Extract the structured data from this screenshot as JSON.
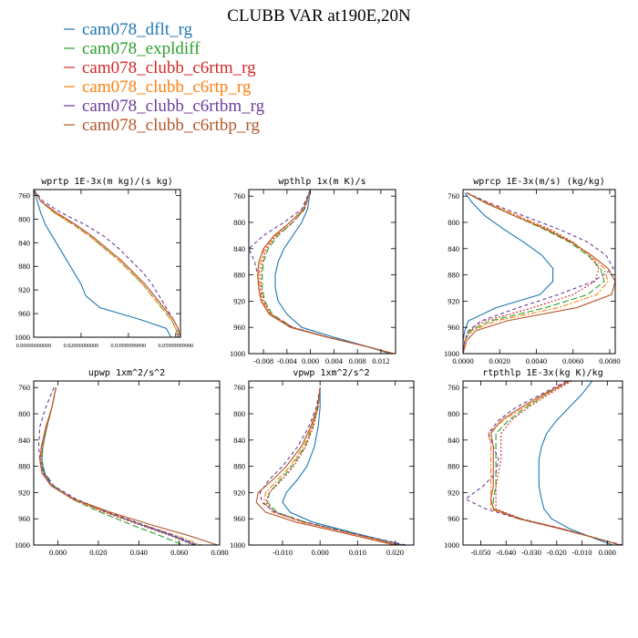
{
  "figure_title": "CLUBB VAR at190E,20N",
  "legend": [
    {
      "label": "cam078_dflt_rg",
      "color": "#1f77b4",
      "dash": "solid"
    },
    {
      "label": "cam078_expldiff",
      "color": "#2ca02c",
      "dash": "longdash"
    },
    {
      "label": "cam078_clubb_c6rtm_rg",
      "color": "#d62728",
      "dash": "dot"
    },
    {
      "label": "cam078_clubb_c6rtp_rg",
      "color": "#ff7f0e",
      "dash": "dashdot"
    },
    {
      "label": "cam078_clubb_c6rtbm_rg",
      "color": "#6a3d9a",
      "dash": "dash"
    },
    {
      "label": "cam078_clubb_c6rtbp_rg",
      "color": "#b5562a",
      "dash": "solid"
    }
  ],
  "chart_data": [
    {
      "type": "line",
      "title": "wprtp  1E-3x(m kg)/(s kg)",
      "xlim": [
        0.0,
        0.062
      ],
      "ylim": [
        1000,
        750
      ],
      "xticks": [
        0.0,
        0.02,
        0.04,
        0.06
      ],
      "xtick_labels": [
        "0.00000000000",
        "0.02000000000",
        "0.03999999990",
        "0.05999999990"
      ],
      "yticks": [
        760,
        800,
        840,
        880,
        920,
        960,
        1000
      ],
      "y": [
        750,
        770,
        790,
        810,
        830,
        850,
        870,
        890,
        910,
        930,
        950,
        970,
        985,
        1000
      ],
      "series": [
        {
          "name": "cam078_dflt_rg",
          "x": [
            0.0,
            0.0015,
            0.003,
            0.005,
            0.008,
            0.011,
            0.014,
            0.017,
            0.02,
            0.022,
            0.028,
            0.045,
            0.056,
            0.058
          ]
        },
        {
          "name": "cam078_expldiff",
          "x": [
            0.0,
            0.003,
            0.009,
            0.017,
            0.024,
            0.03,
            0.036,
            0.041,
            0.046,
            0.05,
            0.054,
            0.058,
            0.06,
            0.061
          ]
        },
        {
          "name": "cam078_clubb_c6rtm_rg",
          "x": [
            0.0,
            0.003,
            0.009,
            0.018,
            0.025,
            0.031,
            0.037,
            0.042,
            0.047,
            0.051,
            0.055,
            0.059,
            0.061,
            0.061
          ]
        },
        {
          "name": "cam078_clubb_c6rtp_rg",
          "x": [
            0.0,
            0.003,
            0.009,
            0.017,
            0.024,
            0.03,
            0.036,
            0.041,
            0.046,
            0.05,
            0.054,
            0.058,
            0.06,
            0.061
          ]
        },
        {
          "name": "cam078_clubb_c6rtbm_rg",
          "x": [
            0.0,
            0.004,
            0.012,
            0.022,
            0.03,
            0.036,
            0.041,
            0.046,
            0.05,
            0.053,
            0.056,
            0.059,
            0.061,
            0.061
          ]
        },
        {
          "name": "cam078_clubb_c6rtbp_rg",
          "x": [
            0.0,
            0.003,
            0.01,
            0.018,
            0.025,
            0.031,
            0.037,
            0.042,
            0.047,
            0.051,
            0.055,
            0.059,
            0.061,
            0.062
          ]
        }
      ]
    },
    {
      "type": "line",
      "title": "wpthlp  1x(m K)/s",
      "xlim": [
        -0.0105,
        0.0145
      ],
      "ylim": [
        1000,
        750
      ],
      "xticks": [
        -0.008,
        -0.004,
        0.0,
        0.004,
        0.008,
        0.012
      ],
      "xtick_labels": [
        "-0.008",
        "-0.004",
        "0.000",
        "0.004",
        "0.008",
        "0.012"
      ],
      "yticks": [
        760,
        800,
        840,
        880,
        920,
        960,
        1000
      ],
      "y": [
        750,
        780,
        800,
        820,
        840,
        860,
        880,
        900,
        920,
        940,
        960,
        975,
        990,
        1000
      ],
      "series": [
        {
          "name": "cam078_dflt_rg",
          "x": [
            0.0,
            -0.0005,
            -0.0015,
            -0.003,
            -0.0045,
            -0.0055,
            -0.006,
            -0.006,
            -0.0055,
            -0.004,
            -0.0015,
            0.004,
            0.01,
            0.0135
          ]
        },
        {
          "name": "cam078_expldiff",
          "x": [
            0.0,
            -0.001,
            -0.003,
            -0.0055,
            -0.0072,
            -0.008,
            -0.0082,
            -0.0082,
            -0.0078,
            -0.0065,
            -0.003,
            0.003,
            0.01,
            0.014
          ]
        },
        {
          "name": "cam078_clubb_c6rtm_rg",
          "x": [
            0.0,
            -0.001,
            -0.003,
            -0.0058,
            -0.0075,
            -0.0082,
            -0.0085,
            -0.0084,
            -0.008,
            -0.0067,
            -0.003,
            0.003,
            0.01,
            0.014
          ]
        },
        {
          "name": "cam078_clubb_c6rtp_rg",
          "x": [
            0.0,
            -0.0012,
            -0.0035,
            -0.006,
            -0.0078,
            -0.0085,
            -0.0088,
            -0.0086,
            -0.0082,
            -0.0068,
            -0.0032,
            0.003,
            0.01,
            0.014
          ]
        },
        {
          "name": "cam078_clubb_c6rtbm_rg",
          "x": [
            0.0,
            -0.0015,
            -0.0045,
            -0.008,
            -0.0105,
            -0.0095,
            -0.009,
            -0.0088,
            -0.0084,
            -0.007,
            -0.0032,
            0.003,
            0.01,
            0.0142
          ]
        },
        {
          "name": "cam078_clubb_c6rtbp_rg",
          "x": [
            0.0,
            -0.0012,
            -0.0035,
            -0.0062,
            -0.008,
            -0.0088,
            -0.009,
            -0.0088,
            -0.0084,
            -0.007,
            -0.0034,
            0.0028,
            0.01,
            0.0142
          ]
        }
      ]
    },
    {
      "type": "line",
      "title": "wprcp  1E-3x(m/s) (kg/kg)",
      "xlim": [
        0.0,
        0.0083
      ],
      "ylim": [
        1000,
        750
      ],
      "xticks": [
        0.0,
        0.002,
        0.004,
        0.006,
        0.008
      ],
      "xtick_labels": [
        "0.0000",
        "0.0020",
        "0.0040",
        "0.0060",
        "0.0080"
      ],
      "yticks": [
        760,
        800,
        840,
        880,
        920,
        960,
        1000
      ],
      "y": [
        755,
        770,
        790,
        810,
        830,
        850,
        870,
        890,
        910,
        930,
        950,
        965,
        980,
        1000
      ],
      "series": [
        {
          "name": "cam078_dflt_rg",
          "x": [
            0.0001,
            0.0005,
            0.0012,
            0.0022,
            0.0033,
            0.0043,
            0.0049,
            0.0049,
            0.0042,
            0.0018,
            0.0003,
            0.0001,
            0.0,
            0.0
          ]
        },
        {
          "name": "cam078_expldiff",
          "x": [
            0.0002,
            0.0012,
            0.0028,
            0.0044,
            0.0058,
            0.0068,
            0.0075,
            0.0077,
            0.0068,
            0.0045,
            0.0015,
            0.0004,
            0.0001,
            0.0
          ]
        },
        {
          "name": "cam078_clubb_c6rtm_rg",
          "x": [
            0.0002,
            0.0013,
            0.003,
            0.0047,
            0.006,
            0.0069,
            0.0074,
            0.0072,
            0.006,
            0.0038,
            0.0012,
            0.0003,
            0.0001,
            0.0
          ]
        },
        {
          "name": "cam078_clubb_c6rtp_rg",
          "x": [
            0.0002,
            0.0013,
            0.003,
            0.0046,
            0.0059,
            0.0069,
            0.0077,
            0.0079,
            0.0073,
            0.0052,
            0.0018,
            0.0005,
            0.0001,
            0.0
          ]
        },
        {
          "name": "cam078_clubb_c6rtbm_rg",
          "x": [
            0.0002,
            0.0014,
            0.0033,
            0.0052,
            0.0068,
            0.0078,
            0.0082,
            0.0071,
            0.0052,
            0.003,
            0.001,
            0.0003,
            0.0001,
            0.0
          ]
        },
        {
          "name": "cam078_clubb_c6rtbp_rg",
          "x": [
            0.0002,
            0.0012,
            0.0028,
            0.0045,
            0.0059,
            0.007,
            0.0079,
            0.0083,
            0.0081,
            0.0062,
            0.0024,
            0.0007,
            0.0002,
            0.0
          ]
        }
      ]
    },
    {
      "type": "line",
      "title": "upwp  1xm^2/s^2",
      "xlim": [
        -0.012,
        0.08
      ],
      "ylim": [
        1000,
        750
      ],
      "xticks": [
        0.0,
        0.02,
        0.04,
        0.06,
        0.08
      ],
      "xtick_labels": [
        "0.000",
        "0.020",
        "0.040",
        "0.060",
        "0.080"
      ],
      "yticks": [
        760,
        800,
        840,
        880,
        920,
        960,
        1000
      ],
      "y": [
        760,
        790,
        820,
        850,
        870,
        890,
        910,
        930,
        950,
        970,
        985,
        1000
      ],
      "series": [
        {
          "name": "cam078_dflt_rg",
          "x": [
            -0.001,
            -0.003,
            -0.0055,
            -0.0075,
            -0.008,
            -0.007,
            -0.003,
            0.008,
            0.024,
            0.042,
            0.056,
            0.068
          ]
        },
        {
          "name": "cam078_expldiff",
          "x": [
            -0.001,
            -0.003,
            -0.0055,
            -0.0075,
            -0.008,
            -0.0065,
            -0.002,
            0.007,
            0.021,
            0.037,
            0.05,
            0.062
          ]
        },
        {
          "name": "cam078_clubb_c6rtm_rg",
          "x": [
            -0.001,
            -0.003,
            -0.0055,
            -0.0078,
            -0.0085,
            -0.0075,
            -0.003,
            0.007,
            0.023,
            0.041,
            0.055,
            0.067
          ]
        },
        {
          "name": "cam078_clubb_c6rtp_rg",
          "x": [
            -0.001,
            -0.003,
            -0.0058,
            -0.008,
            -0.0088,
            -0.0078,
            -0.0032,
            0.0075,
            0.024,
            0.043,
            0.058,
            0.071
          ]
        },
        {
          "name": "cam078_clubb_c6rtbm_rg",
          "x": [
            -0.002,
            -0.006,
            -0.009,
            -0.0095,
            -0.009,
            -0.007,
            -0.002,
            0.009,
            0.025,
            0.043,
            0.057,
            0.069
          ]
        },
        {
          "name": "cam078_clubb_c6rtbp_rg",
          "x": [
            -0.001,
            -0.003,
            -0.006,
            -0.0082,
            -0.009,
            -0.008,
            -0.0034,
            0.008,
            0.026,
            0.047,
            0.064,
            0.079
          ]
        }
      ]
    },
    {
      "type": "line",
      "title": "vpwp  1xm^2/s^2",
      "xlim": [
        -0.019,
        0.025
      ],
      "ylim": [
        1000,
        750
      ],
      "xticks": [
        -0.01,
        0.0,
        0.01,
        0.02
      ],
      "xtick_labels": [
        "-0.010",
        "0.000",
        "0.010",
        "0.020"
      ],
      "yticks": [
        760,
        800,
        840,
        880,
        920,
        960,
        1000
      ],
      "y": [
        760,
        790,
        820,
        850,
        880,
        900,
        920,
        935,
        950,
        965,
        980,
        1000
      ],
      "series": [
        {
          "name": "cam078_dflt_rg",
          "x": [
            0.0,
            0.0,
            -0.0005,
            -0.0015,
            -0.0035,
            -0.006,
            -0.009,
            -0.01,
            -0.008,
            -0.002,
            0.008,
            0.022
          ]
        },
        {
          "name": "cam078_expldiff",
          "x": [
            0.0,
            -0.0005,
            -0.002,
            -0.004,
            -0.0075,
            -0.0105,
            -0.0135,
            -0.014,
            -0.0115,
            -0.004,
            0.007,
            0.021
          ]
        },
        {
          "name": "cam078_clubb_c6rtm_rg",
          "x": [
            0.0,
            -0.0005,
            -0.0018,
            -0.0038,
            -0.007,
            -0.01,
            -0.0135,
            -0.0145,
            -0.012,
            -0.0045,
            0.0065,
            0.021
          ]
        },
        {
          "name": "cam078_clubb_c6rtp_rg",
          "x": [
            0.0,
            -0.0006,
            -0.0022,
            -0.0045,
            -0.008,
            -0.0112,
            -0.0145,
            -0.015,
            -0.0125,
            -0.0048,
            0.0065,
            0.021
          ]
        },
        {
          "name": "cam078_clubb_c6rtbm_rg",
          "x": [
            0.0,
            -0.001,
            -0.003,
            -0.006,
            -0.01,
            -0.0135,
            -0.016,
            -0.0155,
            -0.012,
            -0.004,
            0.007,
            0.023
          ]
        },
        {
          "name": "cam078_clubb_c6rtbp_rg",
          "x": [
            0.0,
            -0.0007,
            -0.0025,
            -0.005,
            -0.009,
            -0.0125,
            -0.0165,
            -0.017,
            -0.0145,
            -0.0065,
            0.005,
            0.02
          ]
        }
      ]
    },
    {
      "type": "line",
      "title": "rtpthlp  1E-3x(kg K)/kg",
      "xlim": [
        -0.057,
        0.006
      ],
      "ylim": [
        1000,
        750
      ],
      "xticks": [
        -0.05,
        -0.04,
        -0.03,
        -0.02,
        -0.01,
        0.0
      ],
      "xtick_labels": [
        "-0.050",
        "-0.040",
        "-0.030",
        "-0.020",
        "-0.010",
        "0.000"
      ],
      "yticks": [
        760,
        800,
        840,
        880,
        920,
        960,
        1000
      ],
      "y": [
        750,
        770,
        790,
        810,
        830,
        850,
        870,
        890,
        910,
        930,
        945,
        960,
        975,
        990,
        1000
      ],
      "series": [
        {
          "name": "cam078_dflt_rg",
          "x": [
            -0.006,
            -0.01,
            -0.015,
            -0.02,
            -0.024,
            -0.026,
            -0.027,
            -0.027,
            -0.027,
            -0.026,
            -0.025,
            -0.022,
            -0.015,
            -0.005,
            0.002
          ]
        },
        {
          "name": "cam078_expldiff",
          "x": [
            -0.015,
            -0.024,
            -0.032,
            -0.039,
            -0.044,
            -0.044,
            -0.044,
            -0.044,
            -0.044,
            -0.045,
            -0.045,
            -0.034,
            -0.018,
            -0.004,
            0.005
          ]
        },
        {
          "name": "cam078_clubb_c6rtm_rg",
          "x": [
            -0.014,
            -0.023,
            -0.031,
            -0.038,
            -0.042,
            -0.042,
            -0.042,
            -0.043,
            -0.044,
            -0.044,
            -0.044,
            -0.034,
            -0.018,
            -0.004,
            0.005
          ]
        },
        {
          "name": "cam078_clubb_c6rtp_rg",
          "x": [
            -0.015,
            -0.024,
            -0.033,
            -0.041,
            -0.047,
            -0.046,
            -0.046,
            -0.046,
            -0.046,
            -0.046,
            -0.046,
            -0.035,
            -0.018,
            -0.004,
            0.005
          ]
        },
        {
          "name": "cam078_clubb_c6rtbm_rg",
          "x": [
            -0.016,
            -0.026,
            -0.036,
            -0.043,
            -0.047,
            -0.045,
            -0.043,
            -0.044,
            -0.049,
            -0.056,
            -0.048,
            -0.035,
            -0.018,
            -0.004,
            0.006
          ]
        },
        {
          "name": "cam078_clubb_c6rtbp_rg",
          "x": [
            -0.015,
            -0.025,
            -0.034,
            -0.042,
            -0.046,
            -0.045,
            -0.045,
            -0.045,
            -0.045,
            -0.046,
            -0.045,
            -0.035,
            -0.019,
            -0.004,
            0.005
          ]
        }
      ]
    }
  ]
}
